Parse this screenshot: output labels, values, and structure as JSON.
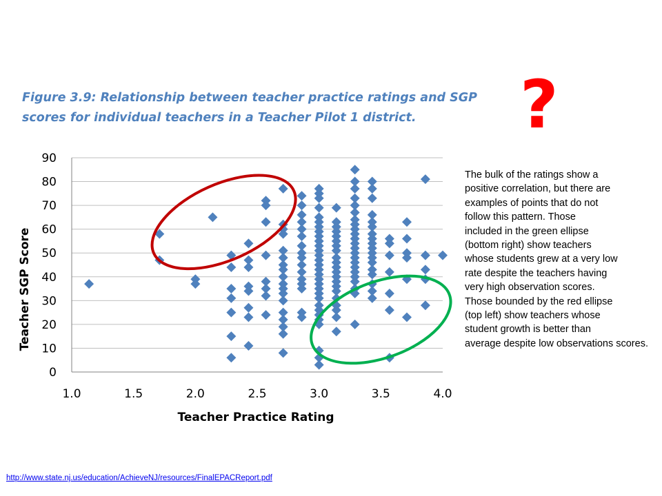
{
  "figure_title": "Figure 3.9: Relationship between teacher practice ratings and SGP\nscores for individual teachers in a Teacher Pilot 1 district.",
  "question_mark": "?",
  "annotation": "The bulk of the ratings show a\npositive correlation, but there are\nexamples of points that do not\nfollow this pattern.  Those\nincluded in the green ellipse\n(bottom right) show teachers\nwhose students grew at a very low\nrate despite the teachers having\nvery high observation scores.\nThose bounded by the red ellipse\n(top left) show teachers whose\nstudent growth is better than\naverage despite low observations scores.",
  "source_link": "http://www.state.nj.us/education/AchieveNJ/resources/FinalEPACReport.pdf",
  "colors": {
    "marker": "#4f81bd",
    "red_ellipse": "#c00000",
    "green_ellipse": "#00b050",
    "grid": "#bfbfbf"
  },
  "chart_data": {
    "type": "scatter",
    "title": "",
    "xlabel": "Teacher Practice Rating",
    "ylabel": "Teacher SGP Score",
    "xlim": [
      1.0,
      4.0
    ],
    "ylim": [
      0,
      90
    ],
    "xticks": [
      "1.0",
      "1.5",
      "2.0",
      "2.5",
      "3.0",
      "3.5",
      "4.0"
    ],
    "yticks": [
      "0",
      "10",
      "20",
      "30",
      "40",
      "50",
      "60",
      "70",
      "80",
      "90"
    ],
    "grid": "horizontal",
    "marker": "diamond",
    "points": [
      [
        1.14,
        37
      ],
      [
        1.71,
        58
      ],
      [
        1.71,
        47
      ],
      [
        2.0,
        39
      ],
      [
        2.0,
        37
      ],
      [
        2.14,
        65
      ],
      [
        2.29,
        49
      ],
      [
        2.29,
        44
      ],
      [
        2.29,
        35
      ],
      [
        2.29,
        31
      ],
      [
        2.29,
        25
      ],
      [
        2.29,
        15
      ],
      [
        2.29,
        6
      ],
      [
        2.43,
        54
      ],
      [
        2.43,
        47
      ],
      [
        2.43,
        44
      ],
      [
        2.43,
        36
      ],
      [
        2.43,
        34
      ],
      [
        2.43,
        27
      ],
      [
        2.43,
        23
      ],
      [
        2.43,
        11
      ],
      [
        2.57,
        72
      ],
      [
        2.57,
        70
      ],
      [
        2.57,
        63
      ],
      [
        2.57,
        49
      ],
      [
        2.57,
        38
      ],
      [
        2.57,
        35
      ],
      [
        2.57,
        32
      ],
      [
        2.57,
        24
      ],
      [
        2.71,
        77
      ],
      [
        2.71,
        62
      ],
      [
        2.71,
        60
      ],
      [
        2.71,
        58
      ],
      [
        2.71,
        51
      ],
      [
        2.71,
        48
      ],
      [
        2.71,
        45
      ],
      [
        2.71,
        43
      ],
      [
        2.71,
        40
      ],
      [
        2.71,
        37
      ],
      [
        2.71,
        35
      ],
      [
        2.71,
        33
      ],
      [
        2.71,
        30
      ],
      [
        2.71,
        25
      ],
      [
        2.71,
        22
      ],
      [
        2.71,
        19
      ],
      [
        2.71,
        16
      ],
      [
        2.71,
        8
      ],
      [
        2.86,
        74
      ],
      [
        2.86,
        70
      ],
      [
        2.86,
        66
      ],
      [
        2.86,
        63
      ],
      [
        2.86,
        60
      ],
      [
        2.86,
        57
      ],
      [
        2.86,
        53
      ],
      [
        2.86,
        50
      ],
      [
        2.86,
        48
      ],
      [
        2.86,
        45
      ],
      [
        2.86,
        42
      ],
      [
        2.86,
        39
      ],
      [
        2.86,
        37
      ],
      [
        2.86,
        35
      ],
      [
        2.86,
        25
      ],
      [
        2.86,
        23
      ],
      [
        3.0,
        77
      ],
      [
        3.0,
        75
      ],
      [
        3.0,
        73
      ],
      [
        3.0,
        69
      ],
      [
        3.0,
        65
      ],
      [
        3.0,
        63
      ],
      [
        3.0,
        61
      ],
      [
        3.0,
        59
      ],
      [
        3.0,
        57
      ],
      [
        3.0,
        55
      ],
      [
        3.0,
        53
      ],
      [
        3.0,
        51
      ],
      [
        3.0,
        49
      ],
      [
        3.0,
        47
      ],
      [
        3.0,
        45
      ],
      [
        3.0,
        43
      ],
      [
        3.0,
        41
      ],
      [
        3.0,
        39
      ],
      [
        3.0,
        37
      ],
      [
        3.0,
        35
      ],
      [
        3.0,
        33
      ],
      [
        3.0,
        31
      ],
      [
        3.0,
        28
      ],
      [
        3.0,
        26
      ],
      [
        3.0,
        24
      ],
      [
        3.0,
        22
      ],
      [
        3.0,
        20
      ],
      [
        3.0,
        9
      ],
      [
        3.0,
        6
      ],
      [
        3.0,
        3
      ],
      [
        3.14,
        69
      ],
      [
        3.14,
        63
      ],
      [
        3.14,
        61
      ],
      [
        3.14,
        59
      ],
      [
        3.14,
        57
      ],
      [
        3.14,
        55
      ],
      [
        3.14,
        53
      ],
      [
        3.14,
        51
      ],
      [
        3.14,
        48
      ],
      [
        3.14,
        46
      ],
      [
        3.14,
        44
      ],
      [
        3.14,
        42
      ],
      [
        3.14,
        40
      ],
      [
        3.14,
        38
      ],
      [
        3.14,
        36
      ],
      [
        3.14,
        34
      ],
      [
        3.14,
        31
      ],
      [
        3.14,
        28
      ],
      [
        3.14,
        26
      ],
      [
        3.14,
        23
      ],
      [
        3.14,
        17
      ],
      [
        3.29,
        85
      ],
      [
        3.29,
        80
      ],
      [
        3.29,
        77
      ],
      [
        3.29,
        73
      ],
      [
        3.29,
        70
      ],
      [
        3.29,
        67
      ],
      [
        3.29,
        64
      ],
      [
        3.29,
        62
      ],
      [
        3.29,
        60
      ],
      [
        3.29,
        58
      ],
      [
        3.29,
        56
      ],
      [
        3.29,
        54
      ],
      [
        3.29,
        52
      ],
      [
        3.29,
        50
      ],
      [
        3.29,
        48
      ],
      [
        3.29,
        46
      ],
      [
        3.29,
        44
      ],
      [
        3.29,
        42
      ],
      [
        3.29,
        40
      ],
      [
        3.29,
        38
      ],
      [
        3.29,
        35
      ],
      [
        3.29,
        33
      ],
      [
        3.29,
        20
      ],
      [
        3.43,
        80
      ],
      [
        3.43,
        77
      ],
      [
        3.43,
        73
      ],
      [
        3.43,
        66
      ],
      [
        3.43,
        63
      ],
      [
        3.43,
        61
      ],
      [
        3.43,
        58
      ],
      [
        3.43,
        56
      ],
      [
        3.43,
        54
      ],
      [
        3.43,
        52
      ],
      [
        3.43,
        50
      ],
      [
        3.43,
        48
      ],
      [
        3.43,
        46
      ],
      [
        3.43,
        43
      ],
      [
        3.43,
        41
      ],
      [
        3.43,
        37
      ],
      [
        3.43,
        34
      ],
      [
        3.43,
        31
      ],
      [
        3.57,
        56
      ],
      [
        3.57,
        54
      ],
      [
        3.57,
        49
      ],
      [
        3.57,
        42
      ],
      [
        3.57,
        33
      ],
      [
        3.57,
        26
      ],
      [
        3.57,
        6
      ],
      [
        3.71,
        63
      ],
      [
        3.71,
        56
      ],
      [
        3.71,
        50
      ],
      [
        3.71,
        48
      ],
      [
        3.71,
        39
      ],
      [
        3.71,
        23
      ],
      [
        3.86,
        81
      ],
      [
        3.86,
        49
      ],
      [
        3.86,
        43
      ],
      [
        3.86,
        39
      ],
      [
        3.86,
        28
      ],
      [
        4.0,
        49
      ]
    ],
    "ellipses": [
      {
        "name": "red",
        "color": "#c00000",
        "cx": 2.23,
        "cy": 63,
        "rx": 0.62,
        "ry": 16,
        "rotation_deg": -24
      },
      {
        "name": "green",
        "color": "#00b050",
        "cx": 3.5,
        "cy": 22,
        "rx": 0.59,
        "ry": 16,
        "rotation_deg": -20
      }
    ]
  }
}
